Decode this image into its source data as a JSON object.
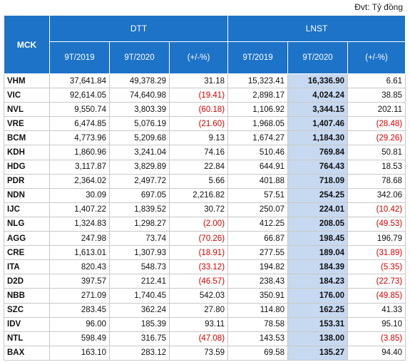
{
  "unit_label": "Đvt: Tỷ đồng",
  "header": {
    "mck": "MCK",
    "groups": [
      "DTT",
      "LNST"
    ],
    "subcols": [
      "9T/2019",
      "9T/2020",
      "(+/-%)",
      "9T/2019",
      "9T/2020",
      "(+/-%)"
    ]
  },
  "rows": [
    {
      "mck": "VHM",
      "vals": [
        "37,641.84",
        "49,378.29",
        "31.18",
        "15,323.41",
        "16,336.90",
        "6.61"
      ]
    },
    {
      "mck": "VIC",
      "vals": [
        "92,614.05",
        "74,640.98",
        "(19.41)",
        "2,898.17",
        "4,024.24",
        "38.85"
      ]
    },
    {
      "mck": "NVL",
      "vals": [
        "9,550.74",
        "3,803.39",
        "(60.18)",
        "1,106.92",
        "3,344.15",
        "202.11"
      ]
    },
    {
      "mck": "VRE",
      "vals": [
        "6,474.85",
        "5,076.19",
        "(21.60)",
        "1,968.05",
        "1,407.46",
        "(28.48)"
      ]
    },
    {
      "mck": "BCM",
      "vals": [
        "4,773.96",
        "5,209.68",
        "9.13",
        "1,674.27",
        "1,184.30",
        "(29.26)"
      ]
    },
    {
      "mck": "KDH",
      "vals": [
        "1,860.96",
        "3,241.04",
        "74.16",
        "510.46",
        "769.84",
        "50.81"
      ]
    },
    {
      "mck": "HDG",
      "vals": [
        "3,117.87",
        "3,829.89",
        "22.84",
        "644.91",
        "764.43",
        "18.53"
      ]
    },
    {
      "mck": "PDR",
      "vals": [
        "2,364.02",
        "2,497.72",
        "5.66",
        "401.88",
        "718.09",
        "78.68"
      ]
    },
    {
      "mck": "NDN",
      "vals": [
        "30.09",
        "697.05",
        "2,216.82",
        "57.51",
        "254.25",
        "342.06"
      ]
    },
    {
      "mck": "IJC",
      "vals": [
        "1,407.22",
        "1,839.52",
        "30.72",
        "250.07",
        "224.01",
        "(10.42)"
      ]
    },
    {
      "mck": "NLG",
      "vals": [
        "1,324.83",
        "1,298.27",
        "(2.00)",
        "412.25",
        "208.05",
        "(49.53)"
      ]
    },
    {
      "mck": "AGG",
      "vals": [
        "247.98",
        "73.74",
        "(70.26)",
        "66.87",
        "198.45",
        "196.79"
      ]
    },
    {
      "mck": "CRE",
      "vals": [
        "1,613.01",
        "1,307.93",
        "(18.91)",
        "277.55",
        "189.04",
        "(31.89)"
      ]
    },
    {
      "mck": "ITA",
      "vals": [
        "820.43",
        "548.73",
        "(33.12)",
        "194.82",
        "184.39",
        "(5.35)"
      ]
    },
    {
      "mck": "D2D",
      "vals": [
        "397.57",
        "212.41",
        "(46.57)",
        "238.43",
        "184.23",
        "(22.73)"
      ]
    },
    {
      "mck": "NBB",
      "vals": [
        "271.09",
        "1,740.45",
        "542.03",
        "350.91",
        "176.00",
        "(49.85)"
      ]
    },
    {
      "mck": "SZC",
      "vals": [
        "283.45",
        "362.24",
        "27.80",
        "114.80",
        "162.25",
        "41.33"
      ]
    },
    {
      "mck": "IDV",
      "vals": [
        "96.00",
        "185.39",
        "93.11",
        "78.58",
        "153.31",
        "95.10"
      ]
    },
    {
      "mck": "NTL",
      "vals": [
        "598.49",
        "316.75",
        "(47.08)",
        "143.53",
        "138.00",
        "(3.85)"
      ]
    },
    {
      "mck": "BAX",
      "vals": [
        "163.10",
        "283.12",
        "73.59",
        "69.58",
        "135.27",
        "94.40"
      ]
    }
  ]
}
